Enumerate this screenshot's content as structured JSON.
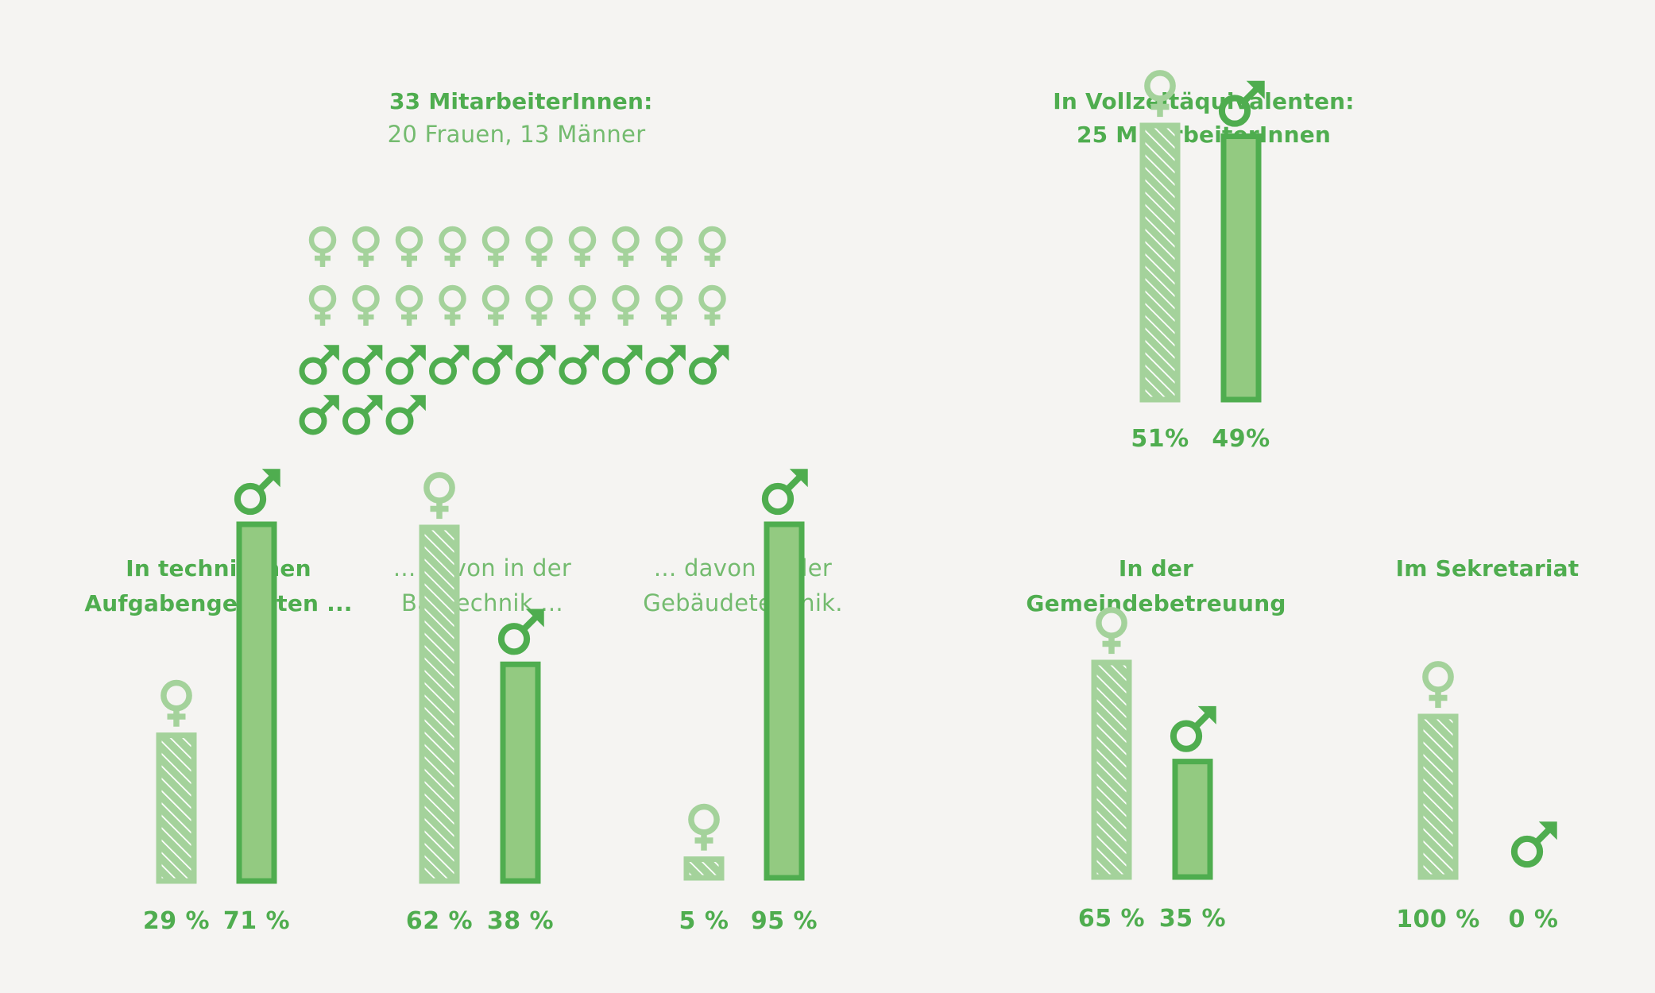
{
  "colors": {
    "female": "#a4d29b",
    "male": "#4fad4f",
    "male_fill": "#93ca81",
    "hatch": "#ffffff",
    "text": "#4fad4f",
    "text_light": "#74bb6f",
    "background": "#f5f4f2"
  },
  "icons": {
    "female": "female-symbol-icon",
    "male": "male-symbol-icon"
  },
  "headcount": {
    "title": "33 MitarbeiterInnen:",
    "subtitle": "20 Frauen, 13 Männer",
    "women": 20,
    "men": 13
  },
  "chart_data": [
    {
      "type": "bar",
      "title": "In Vollzeitäquivalenten:",
      "subtitle": "25 MitarbeiterInnen",
      "categories": [
        "♀",
        "♂"
      ],
      "values": [
        51,
        49
      ],
      "labels": [
        "51%",
        "49%"
      ],
      "ylim": [
        0,
        100
      ]
    },
    {
      "type": "bar",
      "title": "In technischen",
      "subtitle": "Aufgabengebieten ...",
      "categories": [
        "♀",
        "♂"
      ],
      "values": [
        29,
        71
      ],
      "labels": [
        "29 %",
        "71 %"
      ],
      "ylim": [
        0,
        100
      ]
    },
    {
      "type": "bar",
      "title": "... davon in der",
      "subtitle": "Bautechnik ...",
      "categories": [
        "♀",
        "♂"
      ],
      "values": [
        62,
        38
      ],
      "labels": [
        "62 %",
        "38 %"
      ],
      "ylim": [
        0,
        100
      ]
    },
    {
      "type": "bar",
      "title": "... davon in der",
      "subtitle": "Gebäudetechnik.",
      "categories": [
        "♀",
        "♂"
      ],
      "values": [
        5,
        95
      ],
      "labels": [
        "5 %",
        "95 %"
      ],
      "ylim": [
        0,
        100
      ]
    },
    {
      "type": "bar",
      "title": "In der",
      "subtitle": "Gemeindebetreuung",
      "categories": [
        "♀",
        "♂"
      ],
      "values": [
        65,
        35
      ],
      "labels": [
        "65 %",
        "35 %"
      ],
      "ylim": [
        0,
        100
      ]
    },
    {
      "type": "bar",
      "title": "Im Sekretariat",
      "subtitle": "",
      "categories": [
        "♀",
        "♂"
      ],
      "values": [
        100,
        0
      ],
      "labels": [
        "100 %",
        "0 %"
      ],
      "ylim": [
        0,
        100
      ]
    }
  ]
}
